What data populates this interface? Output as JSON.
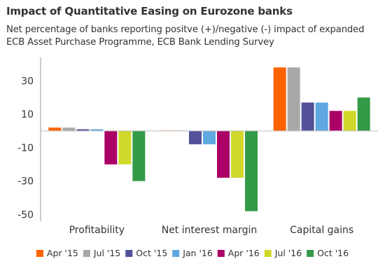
{
  "chart_data": {
    "type": "bar",
    "title": "Impact of Quantitative Easing on Eurozone banks",
    "subtitle": "Net percentage of banks reporting positve (+)/negative (-) impact of expanded ECB Asset Purchase Programme, ECB Bank Lending Survey",
    "categories": [
      "Profitability",
      "Net interest margin",
      "Capital gains"
    ],
    "series": [
      {
        "name": "Apr '15",
        "color": "#ff6200",
        "values": [
          2,
          0,
          38
        ]
      },
      {
        "name": "Jul '15",
        "color": "#a8a8a8",
        "values": [
          2,
          0,
          38
        ]
      },
      {
        "name": "Oct '15",
        "color": "#525199",
        "values": [
          1,
          -8,
          17
        ]
      },
      {
        "name": "Jan '16",
        "color": "#60a8e0",
        "values": [
          1,
          -8,
          17
        ]
      },
      {
        "name": "Apr '16",
        "color": "#ab0066",
        "values": [
          -20,
          -28,
          12
        ]
      },
      {
        "name": "Jul '16",
        "color": "#d0d82a",
        "values": [
          -20,
          -28,
          12
        ]
      },
      {
        "name": "Oct '16",
        "color": "#349a47",
        "values": [
          -30,
          -48,
          20
        ]
      }
    ],
    "yticks": [
      30,
      10,
      -10,
      -30,
      -50
    ],
    "ylim": [
      -54,
      44
    ],
    "legend_position": "bottom",
    "grid": false
  }
}
